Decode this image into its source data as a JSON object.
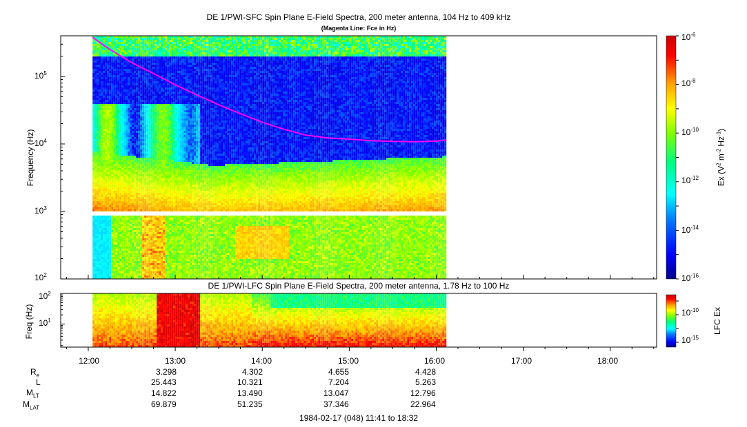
{
  "panel_top": {
    "title": "DE 1/PWI-SFC  Spin Plane E-Field Spectra, 200 meter antenna, 104 Hz to 409 kHz",
    "subtitle": "(Magenta Line: Fce in Hz)",
    "ylabel": "Frequency (Hz)",
    "yticks": [
      {
        "base": "10",
        "exp": "5"
      },
      {
        "base": "10",
        "exp": "4"
      },
      {
        "base": "10",
        "exp": "3"
      },
      {
        "base": "10",
        "exp": "2"
      }
    ],
    "colorbar": {
      "label_prefix": "Ex (V",
      "label_mid1": " m",
      "label_mid2": " Hz",
      "label_suffix": ")",
      "sup1": "2",
      "sup2": "-2",
      "sup3": "-1",
      "ticks": [
        {
          "base": "10",
          "exp": "-6"
        },
        {
          "base": "10",
          "exp": "-8"
        },
        {
          "base": "10",
          "exp": "-10"
        },
        {
          "base": "10",
          "exp": "-12"
        },
        {
          "base": "10",
          "exp": "-14"
        },
        {
          "base": "10",
          "exp": "-16"
        }
      ]
    }
  },
  "panel_bottom": {
    "title": "DE 1/PWI-LFC  Spin Plane E-Field Spectra, 200 meter antenna, 1.78 Hz to 100 Hz",
    "ylabel": "Freq (Hz)",
    "yticks": [
      {
        "base": "10",
        "exp": "2"
      },
      {
        "base": "10",
        "exp": "1"
      }
    ],
    "colorbar": {
      "label": "LFC Ex",
      "ticks": [
        {
          "base": "10",
          "exp": "-10"
        },
        {
          "base": "10",
          "exp": "-15"
        }
      ]
    }
  },
  "xaxis": {
    "ticks": [
      "12:00",
      "13:00",
      "14:00",
      "15:00",
      "16:00",
      "17:00",
      "18:00"
    ]
  },
  "ephemeris": {
    "rows": [
      {
        "label": "R",
        "sub": "e",
        "values": [
          "3.298",
          "4.302",
          "4.655",
          "4.428"
        ]
      },
      {
        "label": "L",
        "sub": "",
        "values": [
          "25.443",
          "10.321",
          "7.204",
          "5.263"
        ]
      },
      {
        "label": "M",
        "sub": "LT",
        "values": [
          "14.822",
          "13.490",
          "13.047",
          "12.796"
        ]
      },
      {
        "label": "M",
        "sub": "LAT",
        "values": [
          "69.879",
          "51.235",
          "37.346",
          "22.964"
        ]
      }
    ]
  },
  "footer": "1984-02-17 (048) 11:41 to 18:32",
  "chart_data": [
    {
      "type": "heatmap",
      "title": "DE 1/PWI-SFC  Spin Plane E-Field Spectra, 200 meter antenna, 104 Hz to 409 kHz",
      "subtitle": "(Magenta Line: Fce in Hz)",
      "xlabel": "",
      "ylabel": "Frequency (Hz)",
      "x_range": [
        "11:41",
        "18:32"
      ],
      "data_x_range": [
        "12:03",
        "16:07"
      ],
      "ylim": [
        100,
        409000
      ],
      "yscale": "log",
      "gap_hz": [
        900,
        1000
      ],
      "colorbar": {
        "label": "Ex (V^2 m^-2 Hz^-1)",
        "range": [
          1e-16,
          1e-06
        ],
        "scale": "log"
      },
      "series": [
        {
          "name": "Fce",
          "color": "#ff00ff",
          "x": [
            "12:03",
            "12:15",
            "12:30",
            "12:45",
            "13:00",
            "13:15",
            "13:30",
            "13:45",
            "14:00",
            "14:15",
            "14:30",
            "14:45",
            "15:00",
            "15:15",
            "15:30",
            "15:45",
            "16:00",
            "16:07"
          ],
          "values": [
            380000,
            250000,
            160000,
            110000,
            75000,
            53000,
            38000,
            28000,
            21000,
            16500,
            13500,
            12300,
            11800,
            11200,
            10900,
            10800,
            11000,
            11500
          ]
        }
      ]
    },
    {
      "type": "heatmap",
      "title": "DE 1/PWI-LFC  Spin Plane E-Field Spectra, 200 meter antenna, 1.78 Hz to 100 Hz",
      "xlabel": "",
      "ylabel": "Freq (Hz)",
      "x_range": [
        "11:41",
        "18:32"
      ],
      "data_x_range": [
        "12:03",
        "16:07"
      ],
      "ylim": [
        1.78,
        100
      ],
      "yscale": "log",
      "colorbar": {
        "label": "LFC Ex",
        "scale": "log"
      }
    }
  ],
  "colors": {
    "fce_line": "#ff00ff",
    "colormap": [
      "#00008b",
      "#0000ff",
      "#00bfff",
      "#00ffff",
      "#00ff80",
      "#80ff00",
      "#ffff00",
      "#ffa500",
      "#ff0000",
      "#c00000"
    ]
  }
}
